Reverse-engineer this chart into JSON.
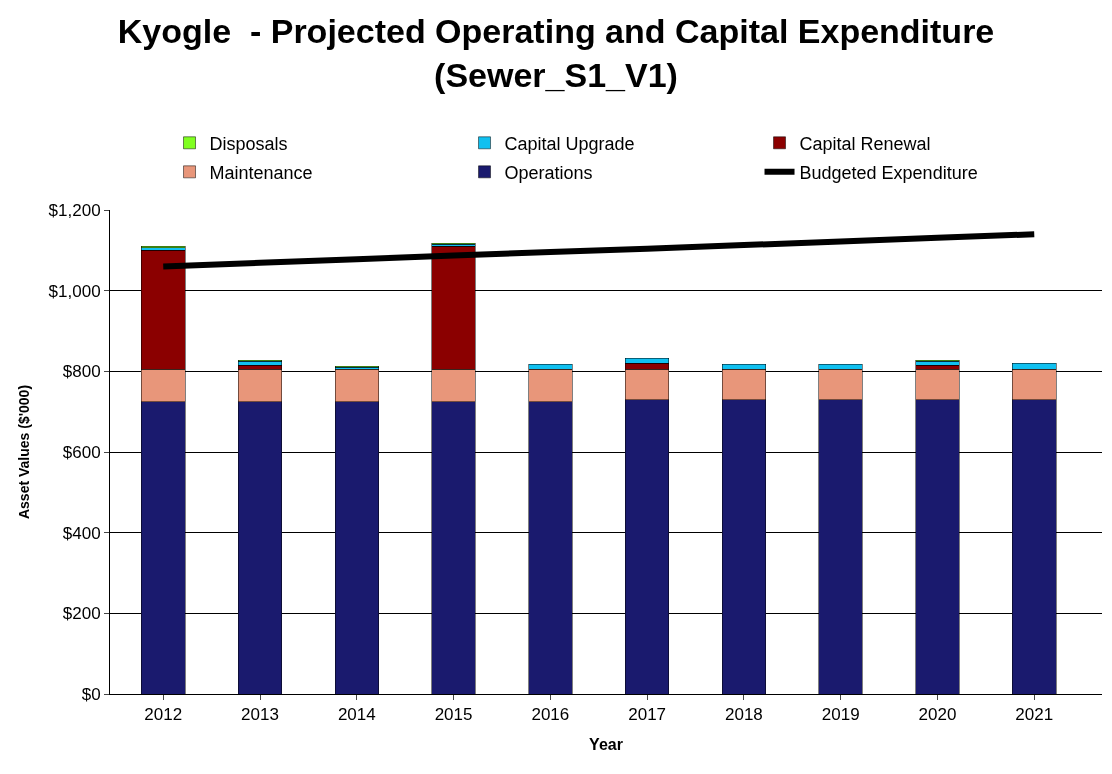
{
  "chart_data": {
    "type": "bar",
    "title": "Kyogle  - Projected Operating and Capital Expenditure\n(Sewer_S1_V1)",
    "xlabel": "Year",
    "ylabel": "Asset Values ($'000)",
    "categories": [
      "2012",
      "2013",
      "2014",
      "2015",
      "2016",
      "2017",
      "2018",
      "2019",
      "2020",
      "2021"
    ],
    "stacked": true,
    "series": [
      {
        "name": "Operations",
        "color": "#1a1a6e",
        "values": [
          725,
          725,
          725,
          725,
          725,
          730,
          730,
          730,
          730,
          730
        ]
      },
      {
        "name": "Maintenance",
        "color": "#e8967a",
        "values": [
          80,
          80,
          80,
          80,
          80,
          75,
          75,
          75,
          75,
          75
        ]
      },
      {
        "name": "Capital Renewal",
        "color": "#8b0000",
        "values": [
          295,
          10,
          null,
          305,
          null,
          15,
          null,
          null,
          10,
          null
        ]
      },
      {
        "name": "Capital Upgrade",
        "color": "#10c0f0",
        "values": [
          7,
          10,
          5,
          5,
          12,
          12,
          12,
          12,
          10,
          15
        ]
      },
      {
        "name": "Disposals",
        "color": "#80ff20",
        "values": [
          3,
          3,
          3,
          3,
          null,
          null,
          null,
          null,
          3,
          null
        ]
      },
      {
        "name": "Budgeted Expenditure",
        "type": "line",
        "color": "#000000",
        "values": [
          1060,
          1069,
          1078,
          1087,
          1096,
          1104,
          1113,
          1122,
          1131,
          1140
        ]
      }
    ],
    "ylim": [
      0,
      1200
    ],
    "yticks": [
      {
        "value": 0,
        "label": "$0"
      },
      {
        "value": 200,
        "label": "$200"
      },
      {
        "value": 400,
        "label": "$400"
      },
      {
        "value": 600,
        "label": "$600"
      },
      {
        "value": 800,
        "label": "$800"
      },
      {
        "value": 1000,
        "label": "$1,000"
      },
      {
        "value": 1200,
        "label": "$1,200"
      }
    ],
    "grid": "y",
    "legend": "top",
    "marker": "none"
  }
}
